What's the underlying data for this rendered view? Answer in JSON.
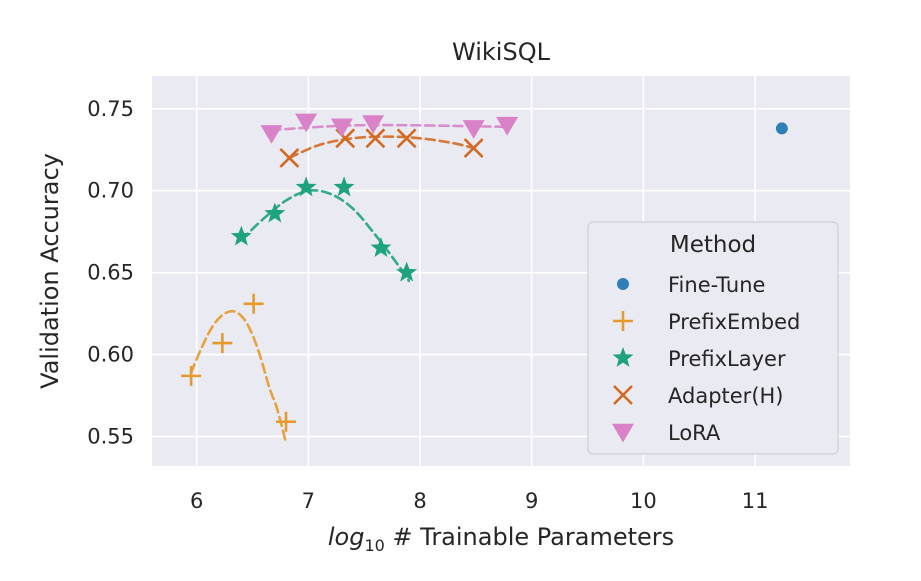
{
  "chart_data": {
    "type": "scatter",
    "title": "WikiSQL",
    "xlabel_italic": "log",
    "xlabel_sub": "10",
    "xlabel_rest": " # Trainable Parameters",
    "ylabel": "Validation Accuracy",
    "xlim": [
      5.6,
      11.85
    ],
    "ylim": [
      0.532,
      0.77
    ],
    "xticks": [
      6,
      7,
      8,
      9,
      10,
      11
    ],
    "yticks": [
      0.55,
      0.6,
      0.65,
      0.7,
      0.75
    ],
    "ytick_labels": [
      "0.55",
      "0.60",
      "0.65",
      "0.70",
      "0.75"
    ],
    "grid": true,
    "legend_title": "Method",
    "legend_position": "right",
    "series": [
      {
        "name": "Fine-Tune",
        "marker": "circle",
        "color": "#2f7fb7",
        "x": [
          11.24
        ],
        "y": [
          0.738
        ],
        "curve": null
      },
      {
        "name": "PrefixEmbed",
        "marker": "plus",
        "color": "#e69a2b",
        "x": [
          5.95,
          6.23,
          6.51,
          6.8
        ],
        "y": [
          0.587,
          0.607,
          0.631,
          0.559
        ],
        "curve": {
          "x": [
            5.95,
            6.05,
            6.15,
            6.25,
            6.35,
            6.45,
            6.55,
            6.65,
            6.72,
            6.8
          ],
          "y": [
            0.589,
            0.605,
            0.618,
            0.625,
            0.626,
            0.619,
            0.603,
            0.58,
            0.567,
            0.546
          ]
        }
      },
      {
        "name": "PrefixLayer",
        "marker": "star",
        "color": "#1fa37e",
        "x": [
          6.4,
          6.7,
          6.98,
          7.32,
          7.65,
          7.88
        ],
        "y": [
          0.672,
          0.686,
          0.702,
          0.702,
          0.665,
          0.65
        ],
        "curve": {
          "x": [
            6.4,
            6.6,
            6.8,
            7.0,
            7.2,
            7.4,
            7.6,
            7.8,
            7.9
          ],
          "y": [
            0.67,
            0.683,
            0.694,
            0.7,
            0.698,
            0.689,
            0.673,
            0.655,
            0.645
          ]
        }
      },
      {
        "name": "Adapter(H)",
        "marker": "x",
        "color": "#d46a22",
        "x": [
          6.83,
          7.33,
          7.6,
          7.88,
          8.48
        ],
        "y": [
          0.72,
          0.732,
          0.732,
          0.732,
          0.726
        ],
        "curve": {
          "x": [
            6.83,
            7.1,
            7.4,
            7.7,
            8.0,
            8.3,
            8.48
          ],
          "y": [
            0.72,
            0.728,
            0.732,
            0.733,
            0.732,
            0.729,
            0.726
          ]
        }
      },
      {
        "name": "LoRA",
        "marker": "triangle-down",
        "color": "#d982c8",
        "x": [
          6.67,
          6.98,
          7.3,
          7.58,
          8.48,
          8.78
        ],
        "y": [
          0.735,
          0.742,
          0.739,
          0.741,
          0.738,
          0.74
        ],
        "curve": {
          "x": [
            6.67,
            7.5,
            8.78
          ],
          "y": [
            0.737,
            0.74,
            0.739
          ]
        }
      }
    ]
  }
}
